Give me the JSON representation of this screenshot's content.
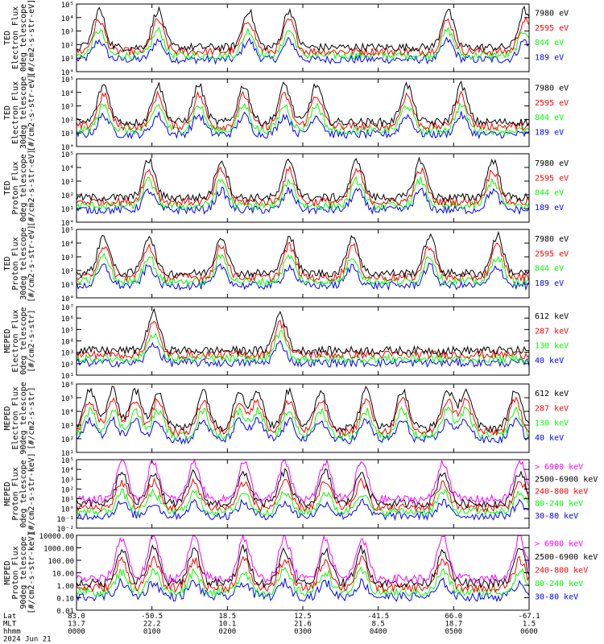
{
  "chart_data": [
    {
      "type": "line",
      "ylabel": [
        "TED",
        "Electron Flux",
        "0deg telescope",
        "[#/cm2-s-str-eV]"
      ],
      "yscale": "log",
      "ylim": [
        1,
        100000
      ],
      "ytick_labels": [
        "10°",
        "10¹",
        "10²",
        "10³",
        "10⁴",
        "10⁵"
      ],
      "series": [
        {
          "name": "7980 eV",
          "color": "#000000"
        },
        {
          "name": "2595 eV",
          "color": "#ff0000"
        },
        {
          "name": "844 eV",
          "color": "#00ff00"
        },
        {
          "name": "189 eV",
          "color": "#0000ff"
        }
      ]
    },
    {
      "type": "line",
      "ylabel": [
        "TED",
        "Electron Flux",
        "30deg telescope",
        "[#/cm2-s-str-eV]"
      ],
      "yscale": "log",
      "ylim": [
        1,
        100000
      ],
      "ytick_labels": [
        "10°",
        "10¹",
        "10²",
        "10³",
        "10⁴",
        "10⁵"
      ],
      "series": [
        {
          "name": "7980 eV",
          "color": "#000000"
        },
        {
          "name": "2595 eV",
          "color": "#ff0000"
        },
        {
          "name": "844 eV",
          "color": "#00ff00"
        },
        {
          "name": "189 eV",
          "color": "#0000ff"
        }
      ]
    },
    {
      "type": "line",
      "ylabel": [
        "TED",
        "Proton Flux",
        "0deg telescope",
        "[#/cm2-s-str-eV]"
      ],
      "yscale": "log",
      "ylim": [
        1,
        100000
      ],
      "ytick_labels": [
        "10°",
        "10¹",
        "10²",
        "10³",
        "10⁴",
        "10⁵"
      ],
      "series": [
        {
          "name": "7980 eV",
          "color": "#000000"
        },
        {
          "name": "2595 eV",
          "color": "#ff0000"
        },
        {
          "name": "844 eV",
          "color": "#00ff00"
        },
        {
          "name": "189 eV",
          "color": "#0000ff"
        }
      ]
    },
    {
      "type": "line",
      "ylabel": [
        "TED",
        "Proton Flux",
        "30deg telescope",
        "[#/cm2-s-str-eV]"
      ],
      "yscale": "log",
      "ylim": [
        1,
        100000
      ],
      "ytick_labels": [
        "10°",
        "10¹",
        "10²",
        "10³",
        "10⁴",
        "10⁵"
      ],
      "series": [
        {
          "name": "7980 eV",
          "color": "#000000"
        },
        {
          "name": "2595 eV",
          "color": "#ff0000"
        },
        {
          "name": "844 eV",
          "color": "#00ff00"
        },
        {
          "name": "189 eV",
          "color": "#0000ff"
        }
      ]
    },
    {
      "type": "line",
      "ylabel": [
        "MEPED",
        "Electron Flux",
        "0deg telescope",
        "[#/cm2-s-str]"
      ],
      "yscale": "log",
      "ylim": [
        10,
        10000000
      ],
      "ytick_labels": [
        "10¹",
        "10²",
        "10³",
        "10⁴",
        "10⁵",
        "10⁶",
        "10⁷"
      ],
      "series": [
        {
          "name": "612 keV",
          "color": "#000000"
        },
        {
          "name": "287 keV",
          "color": "#ff0000"
        },
        {
          "name": "130 keV",
          "color": "#00ff00"
        },
        {
          "name": "40 keV",
          "color": "#0000ff"
        }
      ]
    },
    {
      "type": "line",
      "ylabel": [
        "MEPED",
        "Electron Flux",
        "90deg telescope",
        "[#/cm2-s-str]"
      ],
      "yscale": "log",
      "ylim": [
        10,
        1000000
      ],
      "ytick_labels": [
        "10¹",
        "10²",
        "10³",
        "10⁴",
        "10⁵",
        "10⁶"
      ],
      "series": [
        {
          "name": "612 keV",
          "color": "#000000"
        },
        {
          "name": "287 keV",
          "color": "#ff0000"
        },
        {
          "name": "130 keV",
          "color": "#00ff00"
        },
        {
          "name": "40 keV",
          "color": "#0000ff"
        }
      ]
    },
    {
      "type": "line",
      "ylabel": [
        "MEPED",
        "Proton Flux",
        "0deg telescope",
        "[#/cm2-s-str-keV]"
      ],
      "yscale": "log",
      "ylim": [
        0.01,
        100000
      ],
      "ytick_labels": [
        "10⁻²",
        "10⁻¹",
        "10°",
        "10¹",
        "10²",
        "10³",
        "10⁴",
        "10⁵"
      ],
      "series": [
        {
          "name": "> 6900 keV",
          "color": "#ff00ff"
        },
        {
          "name": "2500-6900 keV",
          "color": "#000000"
        },
        {
          "name": "240-800 keV",
          "color": "#ff0000"
        },
        {
          "name": "80-240 keV",
          "color": "#00ff00"
        },
        {
          "name": "30-80 keV",
          "color": "#0000ff"
        }
      ]
    },
    {
      "type": "line",
      "ylabel": [
        "MEPED",
        "Proton Flux",
        "90deg telescope",
        "[#/cm2-s-str-keV]"
      ],
      "yscale": "log",
      "ylim": [
        0.01,
        10000
      ],
      "ytick_labels": [
        "0.01",
        "0.10",
        "1.00",
        "10.00",
        "100.00",
        "1000.00",
        "10000.00"
      ],
      "series": [
        {
          "name": "> 6900 keV",
          "color": "#ff00ff"
        },
        {
          "name": "2500-6900 keV",
          "color": "#000000"
        },
        {
          "name": "240-800 keV",
          "color": "#ff0000"
        },
        {
          "name": "80-240 keV",
          "color": "#00ff00"
        },
        {
          "name": "30-80 keV",
          "color": "#0000ff"
        }
      ]
    }
  ],
  "x_axis": {
    "row_labels": [
      "Lat",
      "MLT",
      "hhmm",
      "2024 Jun 21"
    ],
    "ticks": [
      {
        "lat": "83.0",
        "mlt": "13.7",
        "time": "0000"
      },
      {
        "lat": "-50.5",
        "mlt": "22.2",
        "time": "0100"
      },
      {
        "lat": "18.5",
        "mlt": "10.1",
        "time": "0200"
      },
      {
        "lat": "12.5",
        "mlt": "21.6",
        "time": "0300"
      },
      {
        "lat": "-41.5",
        "mlt": "8.5",
        "time": "0400"
      },
      {
        "lat": "66.0",
        "mlt": "18.7",
        "time": "0500"
      },
      {
        "lat": "-67.1",
        "mlt": "1.5",
        "time": "0600"
      }
    ]
  }
}
